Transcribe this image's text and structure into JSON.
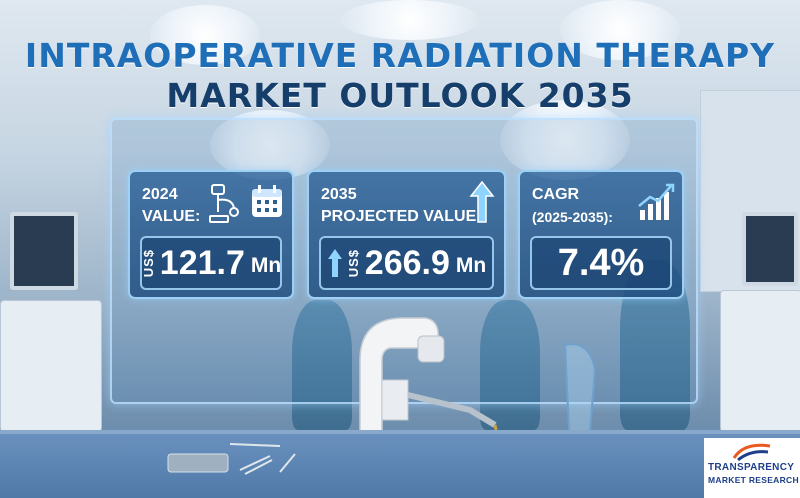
{
  "title": {
    "line1": "INTRAOPERATIVE RADIATION THERAPY",
    "line2": "MARKET OUTLOOK 2035"
  },
  "cards": [
    {
      "label_line1": "2024",
      "label_line2": "VALUE:",
      "currency": "US$",
      "value": "121.7",
      "unit": "Mn",
      "icons": [
        "device-icon",
        "calendar-icon"
      ]
    },
    {
      "label_line1": "2035",
      "label_line2": "PROJECTED VALUE:",
      "currency": "US$",
      "value": "266.9",
      "unit": "Mn",
      "icons": [
        "arrow-up-icon"
      ]
    },
    {
      "label_line1": "CAGR",
      "label_line2": "(2025-2035):",
      "value": "7.4%",
      "icons": [
        "growth-chart-icon"
      ]
    }
  ],
  "logo": {
    "line1": "TRANSPARENCY",
    "line2": "MARKET RESEARCH"
  },
  "colors": {
    "title_primary": "#1f6fb8",
    "title_secondary": "#163e6b",
    "card_bg": "#285f96",
    "card_border": "#aadcff"
  }
}
